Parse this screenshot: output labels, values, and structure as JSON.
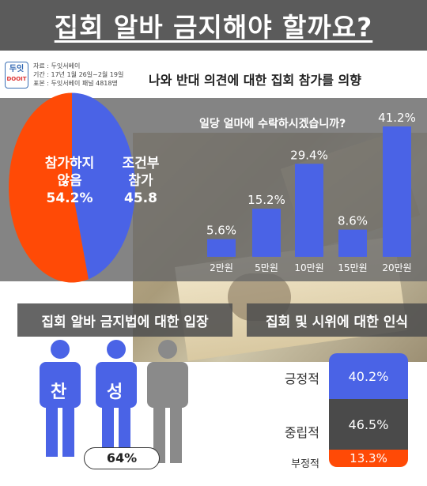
{
  "header": {
    "title": "집회 알바 금지해야 할까요?"
  },
  "source": {
    "logo_top": "두잇",
    "logo_bottom": "DOOIT",
    "lines": [
      "자료 : 두잇서베이",
      "기간 : 17년 1월 26일~2월 19일",
      "표본 : 두잇서베이 패널 4818명"
    ]
  },
  "subtitle": "나와 반대 의견에 대한 집회 참가를 의향",
  "pie": {
    "slices": [
      {
        "label_line1": "조건부",
        "label_line2": "참가",
        "value_text": "45.8"
      },
      {
        "label_line1": "참가하지",
        "label_line2": "않음",
        "value_text": "54.2%"
      }
    ]
  },
  "question": "일당 얼마에 수락하시겠습니까?",
  "section_left": "집회 알바 금지법에 대한 입장",
  "section_right": "집회 및 시위에 대한 인식",
  "people": {
    "char1": "찬",
    "char2": "성",
    "pct": "64%"
  },
  "perception": {
    "items": [
      {
        "label": "긍정적",
        "value": "40.2%"
      },
      {
        "label": "중립적",
        "value": "46.5%"
      },
      {
        "label": "부정적",
        "value": "13.3%"
      }
    ]
  },
  "colors": {
    "blue": "#4a63e6",
    "orange": "#ff4a06",
    "dark": "#4a4a4a",
    "gray": "#8a8a8a"
  },
  "chart_data": [
    {
      "type": "pie",
      "categories": [
        "조건부 참가",
        "참가하지 않음"
      ],
      "values": [
        45.8,
        54.2
      ]
    },
    {
      "type": "bar",
      "title": "일당 얼마에 수락하시겠습니까?",
      "categories": [
        "2만원",
        "5만원",
        "10만원",
        "15만원",
        "20만원"
      ],
      "values": [
        5.6,
        15.2,
        29.4,
        8.6,
        41.2
      ],
      "value_labels": [
        "5.6%",
        "15.2%",
        "29.4%",
        "8.6%",
        "41.2%"
      ]
    },
    {
      "type": "bar",
      "categories": [
        "긍정적",
        "중립적",
        "부정적"
      ],
      "values": [
        40.2,
        46.5,
        13.3
      ]
    }
  ]
}
